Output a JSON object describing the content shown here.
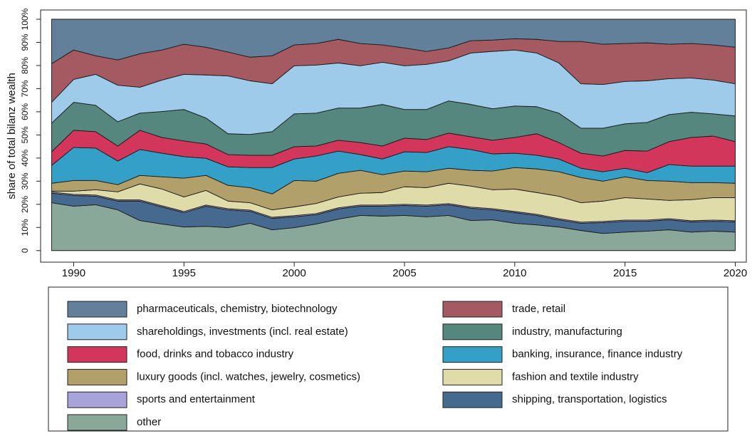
{
  "chart_data": {
    "type": "stacked_area",
    "y_label": "share of total bilanz wealth",
    "x": [
      1989,
      1990,
      1991,
      1992,
      1993,
      1994,
      1995,
      1996,
      1997,
      1998,
      1999,
      2000,
      2001,
      2002,
      2003,
      2004,
      2005,
      2006,
      2007,
      2008,
      2009,
      2010,
      2011,
      2012,
      2013,
      2014,
      2015,
      2016,
      2017,
      2018,
      2019,
      2020
    ],
    "xlim": [
      1988.5,
      2020.5
    ],
    "xticks": [
      1990,
      1995,
      2000,
      2005,
      2010,
      2015,
      2020
    ],
    "ylim": [
      -5,
      104
    ],
    "yticks": [
      0,
      {
        "value": 10,
        "label": "10%"
      },
      {
        "value": 20,
        "label": "20%"
      },
      {
        "value": 30,
        "label": "30%"
      },
      {
        "value": 40,
        "label": "40%"
      },
      {
        "value": 50,
        "label": "50%"
      },
      {
        "value": 60,
        "label": "60%"
      },
      {
        "value": 70,
        "label": "70%"
      },
      {
        "value": 80,
        "label": "80%"
      },
      {
        "value": 90,
        "label": "90%"
      },
      {
        "value": 100,
        "label": "100%"
      }
    ],
    "legend": "bottom",
    "series": [
      {
        "name": "other",
        "color": "#8aa89a",
        "values": [
          20.7,
          19.2,
          19.8,
          17.6,
          13,
          11.5,
          10.2,
          10.5,
          9.9,
          11.8,
          9,
          9.9,
          11.5,
          13.6,
          15.2,
          14.9,
          15.2,
          14.6,
          15.2,
          13,
          13.3,
          11.8,
          11.1,
          10.2,
          8.7,
          7.4,
          8,
          8.4,
          9,
          8,
          8.4,
          8
        ]
      },
      {
        "name": "shipping, transportation, logistics",
        "color": "#45698f",
        "values": [
          4.1,
          4.6,
          3.7,
          3.8,
          8.4,
          7.4,
          6.2,
          8.7,
          7.7,
          5.2,
          4.9,
          4.7,
          4,
          4.4,
          4,
          4.3,
          4.3,
          4.6,
          4.6,
          5.3,
          4.3,
          4.6,
          4.1,
          3.1,
          3.1,
          4.7,
          4.7,
          4.3,
          4.3,
          4.4,
          4.3,
          4.4
        ]
      },
      {
        "name": "sports and entertainment",
        "color": "#a9a3dc",
        "values": [
          0.5,
          0.5,
          0.5,
          0.5,
          0.5,
          0.5,
          0.5,
          0.5,
          0.5,
          0.5,
          0.5,
          0.5,
          0.5,
          0.5,
          0.5,
          0.5,
          0.5,
          0.5,
          0.5,
          0.5,
          0.5,
          0.5,
          0.5,
          0.5,
          0.5,
          0.5,
          0.5,
          0.5,
          0.5,
          0.5,
          0.5,
          0.5
        ]
      },
      {
        "name": "fashion and textile industry",
        "color": "#e0dcaa",
        "values": [
          0.4,
          1.4,
          2.3,
          3.5,
          6.9,
          7.2,
          6.3,
          6.3,
          3.3,
          3.2,
          3.2,
          3.8,
          4.4,
          4.7,
          5.1,
          5.4,
          7.6,
          7.5,
          8.8,
          9.1,
          8.2,
          9.7,
          9.4,
          9.7,
          8.4,
          8.8,
          9.7,
          9.1,
          7.9,
          9.1,
          9.7,
          10
        ]
      },
      {
        "name": "luxury goods (incl. watches, jewelry, cosmetics)",
        "color": "#b2a06b",
        "values": [
          3.4,
          4.6,
          4,
          3.1,
          3.7,
          5.3,
          8.1,
          6.5,
          6.8,
          6.5,
          6.9,
          11.4,
          9.6,
          10.2,
          9.9,
          7.7,
          6.8,
          6.9,
          6.5,
          6.8,
          8.1,
          9.3,
          10.2,
          10.6,
          10.9,
          8.6,
          9,
          8,
          8.3,
          7.4,
          6.5,
          6.2
        ]
      },
      {
        "name": "banking, insurance, finance industry",
        "color": "#34a0c8",
        "values": [
          7.7,
          14.3,
          14,
          10.2,
          11.2,
          10.2,
          9.3,
          7.4,
          8,
          8.7,
          11.4,
          9.3,
          10.9,
          9.6,
          6.8,
          6.8,
          8.3,
          8.3,
          9.3,
          9,
          7.4,
          6.2,
          5.9,
          5.5,
          4,
          4.1,
          3.7,
          3.4,
          7.2,
          7.1,
          7.1,
          7.4
        ]
      },
      {
        "name": "food, drinks and tobacco industry",
        "color": "#d2365a",
        "values": [
          5.9,
          7.4,
          7.1,
          6.5,
          8.3,
          6.8,
          6.8,
          6.2,
          5.3,
          5.3,
          5.3,
          5.3,
          4.3,
          4.7,
          5.2,
          5.6,
          5.9,
          5.6,
          5.9,
          5.5,
          5.9,
          6.8,
          9.3,
          7.1,
          6.5,
          6.8,
          7.7,
          9.3,
          9.9,
          12.4,
          13,
          10.6
        ]
      },
      {
        "name": "industry, manufacturing",
        "color": "#55877e",
        "values": [
          12.4,
          12.1,
          11.4,
          10.5,
          7.4,
          11.2,
          13.6,
          11.2,
          9,
          9,
          10.2,
          14.2,
          14.2,
          13.9,
          14.9,
          18,
          12.4,
          13,
          13.9,
          14,
          13.6,
          13.6,
          11.7,
          12.7,
          10.8,
          12,
          11.5,
          12.4,
          11.7,
          10.9,
          9.6,
          11.1
        ]
      },
      {
        "name": "shareholdings, investments (incl. real estate)",
        "color": "#9dcbe9",
        "values": [
          9,
          9.9,
          13.4,
          15.8,
          11.2,
          13.6,
          15.2,
          18.6,
          25,
          23.2,
          20.7,
          20.8,
          20.8,
          19.5,
          18.3,
          18.2,
          18.9,
          19.5,
          17.3,
          22.2,
          24.8,
          24.2,
          23.2,
          21.7,
          19.2,
          18.9,
          18.3,
          18,
          15.5,
          14.8,
          14.6,
          13.9
        ]
      },
      {
        "name": "trade, retail",
        "color": "#a55a62",
        "values": [
          16.7,
          12.7,
          8,
          10.9,
          14.5,
          13,
          13,
          12,
          10.3,
          10.2,
          12.1,
          9,
          9.3,
          10.2,
          9.6,
          7.5,
          7.7,
          5.6,
          5.6,
          5.3,
          4.9,
          4.9,
          5.9,
          9.3,
          18.3,
          17.4,
          16.4,
          16.4,
          14.9,
          14.9,
          15.2,
          15.8
        ]
      },
      {
        "name": "pharmaceuticals, chemistry, biotechnology",
        "color": "#62809a",
        "values": [
          19.2,
          13.3,
          15.8,
          17.6,
          14.9,
          13.3,
          10.8,
          12.1,
          14.2,
          16.4,
          15.8,
          11.1,
          10.5,
          8.7,
          10.5,
          11.1,
          12.4,
          13.9,
          12.4,
          9.3,
          9,
          8.4,
          8.7,
          9.6,
          9.6,
          10.8,
          10.5,
          10.2,
          10.8,
          10.5,
          11.1,
          12.1
        ]
      }
    ]
  }
}
